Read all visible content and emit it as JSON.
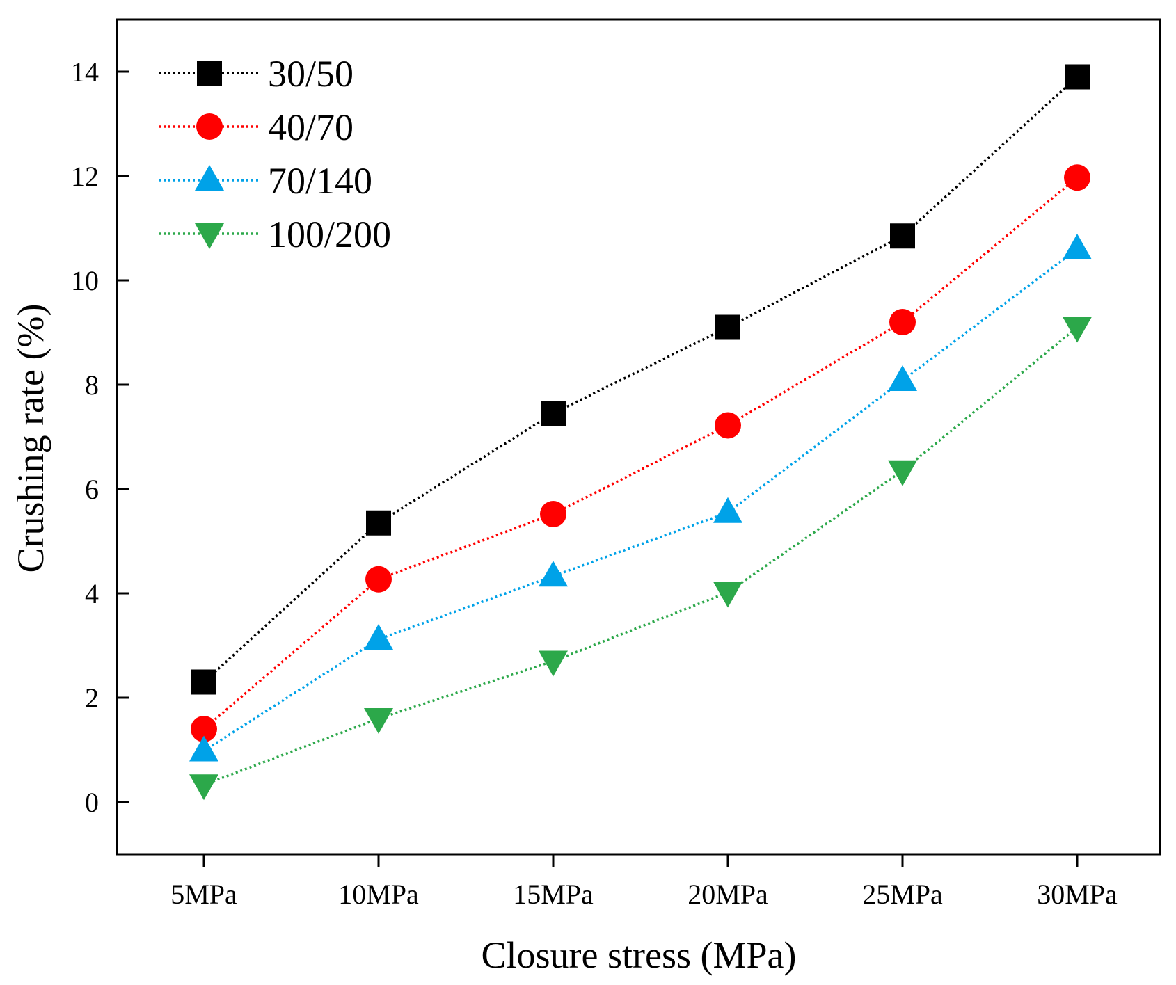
{
  "chart_data": {
    "type": "line",
    "title": "",
    "xlabel": "Closure stress (MPa)",
    "ylabel": "Crushing rate (%)",
    "categories": [
      "5MPa",
      "10MPa",
      "15MPa",
      "20MPa",
      "25MPa",
      "30MPa"
    ],
    "ylim": [
      -1,
      15
    ],
    "yticks": [
      0,
      2,
      4,
      6,
      8,
      10,
      12,
      14
    ],
    "grid": false,
    "legend_position": "top-left",
    "series": [
      {
        "name": "30/50",
        "marker": "square",
        "color": "#000000",
        "values": [
          2.3,
          5.35,
          7.45,
          9.1,
          10.85,
          13.9
        ]
      },
      {
        "name": "40/70",
        "marker": "circle",
        "color": "#ff0000",
        "values": [
          1.4,
          4.27,
          5.52,
          7.22,
          9.2,
          11.97
        ]
      },
      {
        "name": "70/140",
        "marker": "triangle-up",
        "color": "#00a2e8",
        "values": [
          0.98,
          3.12,
          4.33,
          5.55,
          8.08,
          10.6
        ]
      },
      {
        "name": "100/200",
        "marker": "triangle-down",
        "color": "#2ca84a",
        "values": [
          0.33,
          1.6,
          2.7,
          4.02,
          6.35,
          9.1
        ]
      }
    ]
  }
}
